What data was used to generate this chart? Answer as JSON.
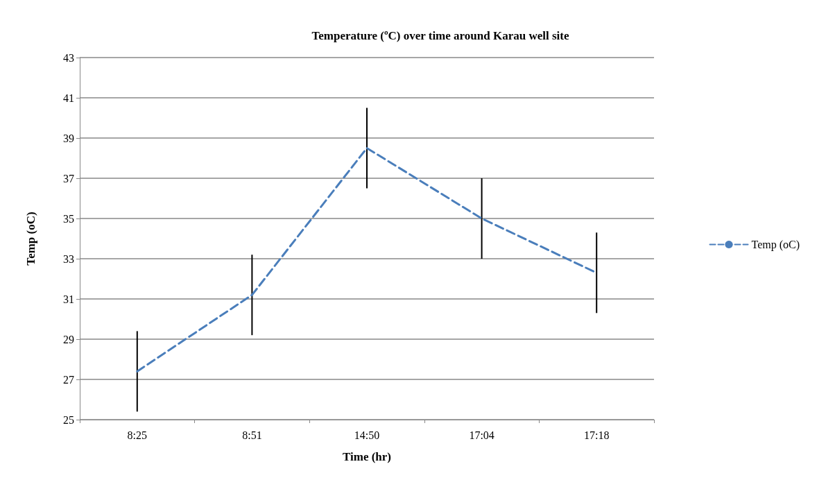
{
  "chart_data": {
    "type": "line",
    "title": "Temperature (ºC) over time around Karau well site",
    "xlabel": "Time (hr)",
    "ylabel": "Temp (oC)",
    "categories": [
      "8:25",
      "8:51",
      "14:50",
      "17:04",
      "17:18"
    ],
    "series": [
      {
        "name": "Temp (oC)",
        "color": "#4a7ebb",
        "values": [
          27.4,
          31.2,
          38.5,
          35.0,
          32.3
        ],
        "errors": [
          2,
          2,
          2,
          2,
          2
        ]
      }
    ],
    "ylim": [
      25,
      43
    ],
    "yticks": [
      25,
      27,
      29,
      31,
      33,
      35,
      37,
      39,
      41,
      43
    ],
    "grid": "y",
    "legend": "right",
    "marker": "none",
    "line_style": "dashed"
  }
}
